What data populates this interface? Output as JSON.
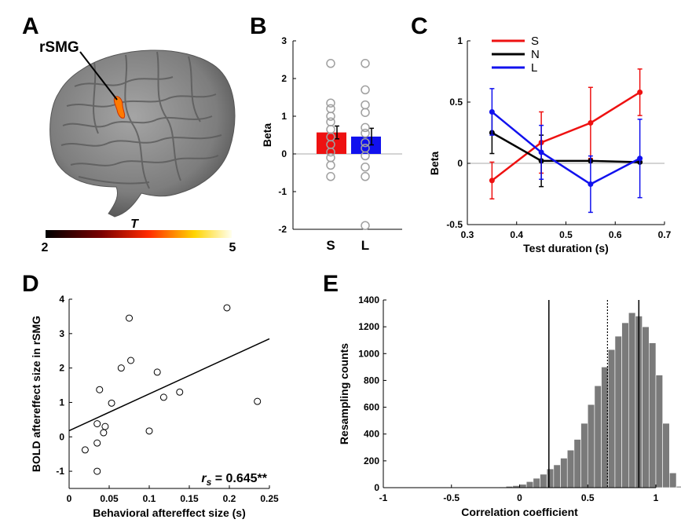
{
  "panels": {
    "a": "A",
    "b": "B",
    "c": "C",
    "d": "D",
    "e": "E"
  },
  "brain": {
    "region_label": "rSMG",
    "colorbar_label": "T",
    "colorbar_min": "2",
    "colorbar_max": "5"
  },
  "colors": {
    "red": "#ee1111",
    "blue": "#1111ee",
    "black": "#000000",
    "hist_bar": "#7a7a7a",
    "circle": "#a0a0a0",
    "cortex": "#8c8c8c"
  },
  "chart_data": [
    {
      "panel": "B",
      "type": "bar",
      "categories": [
        "S",
        "L"
      ],
      "values": [
        0.57,
        0.46
      ],
      "errors": [
        0.17,
        0.22
      ],
      "individual_points": {
        "S": [
          2.4,
          1.35,
          1.2,
          1.0,
          0.85,
          0.65,
          0.45,
          0.25,
          0.05,
          -0.1,
          -0.3,
          -0.6
        ],
        "L": [
          2.4,
          1.7,
          1.3,
          1.1,
          0.7,
          0.55,
          0.3,
          0.15,
          -0.05,
          -0.35,
          -0.6,
          -1.9
        ]
      },
      "ylabel": "Beta",
      "ylim": [
        -2,
        3
      ],
      "yticks": [
        "-2",
        "-1",
        "0",
        "1",
        "2",
        "3"
      ],
      "bar_colors": [
        "#ee1111",
        "#1111ee"
      ]
    },
    {
      "panel": "C",
      "type": "line",
      "x": [
        0.35,
        0.45,
        0.55,
        0.65
      ],
      "series": [
        {
          "name": "S",
          "color": "#ee1111",
          "values": [
            -0.14,
            0.17,
            0.33,
            0.58
          ],
          "errors": [
            0.15,
            0.25,
            0.29,
            0.19
          ]
        },
        {
          "name": "N",
          "color": "#000000",
          "values": [
            0.25,
            0.02,
            0.02,
            0.01
          ],
          "errors": [
            0.17,
            0.21,
            0.0,
            0.0
          ]
        },
        {
          "name": "L",
          "color": "#1111ee",
          "values": [
            0.42,
            0.09,
            -0.17,
            0.04
          ],
          "errors": [
            0.19,
            0.22,
            0.23,
            0.32
          ]
        }
      ],
      "xlabel": "Test duration (s)",
      "ylabel": "Beta",
      "xlim": [
        0.3,
        0.7
      ],
      "ylim": [
        -0.5,
        1
      ],
      "xticks": [
        "0.3",
        "0.4",
        "0.5",
        "0.6",
        "0.7"
      ],
      "yticks": [
        "-0.5",
        "0",
        "0.5",
        "1"
      ],
      "legend": "top-left"
    },
    {
      "panel": "D",
      "type": "scatter",
      "points": [
        [
          0.02,
          -0.38
        ],
        [
          0.035,
          -0.18
        ],
        [
          0.035,
          0.38
        ],
        [
          0.035,
          -1.0
        ],
        [
          0.038,
          1.37
        ],
        [
          0.043,
          0.12
        ],
        [
          0.045,
          0.3
        ],
        [
          0.053,
          0.98
        ],
        [
          0.065,
          2.0
        ],
        [
          0.075,
          3.45
        ],
        [
          0.077,
          2.22
        ],
        [
          0.1,
          0.17
        ],
        [
          0.11,
          1.88
        ],
        [
          0.118,
          1.15
        ],
        [
          0.138,
          1.3
        ],
        [
          0.197,
          3.75
        ],
        [
          0.235,
          1.03
        ]
      ],
      "fit_line": [
        [
          0.0,
          0.18
        ],
        [
          0.25,
          2.85
        ]
      ],
      "xlabel": "Behavioral aftereffect size (s)",
      "ylabel": "BOLD aftereffect size in rSMG",
      "xlim": [
        0,
        0.25
      ],
      "ylim": [
        -1.5,
        4
      ],
      "xticks": [
        "0",
        "0.05",
        "0.1",
        "0.15",
        "0.2",
        "0.25"
      ],
      "yticks": [
        "-1",
        "0",
        "1",
        "2",
        "3",
        "4"
      ],
      "annotation_symbol": "r",
      "annotation_subscript": "s",
      "annotation_value": " = 0.645**"
    },
    {
      "panel": "E",
      "type": "bar",
      "bin_start": -0.2,
      "bin_width": 0.05,
      "values": [
        2,
        5,
        10,
        15,
        25,
        45,
        70,
        100,
        140,
        170,
        220,
        280,
        360,
        480,
        620,
        760,
        900,
        1030,
        1130,
        1230,
        1305,
        1280,
        1200,
        1080,
        840,
        480,
        110,
        10
      ],
      "vlines_solid": [
        0.215,
        0.875
      ],
      "vline_dotted": 0.645,
      "xlabel": "Correlation coefficient",
      "ylabel": "Resampling counts",
      "xlim": [
        -1,
        1
      ],
      "ylim": [
        0,
        1400
      ],
      "xticks": [
        "-1",
        "-0.5",
        "0",
        "0.5",
        "1"
      ],
      "yticks": [
        "0",
        "200",
        "400",
        "600",
        "800",
        "1000",
        "1200",
        "1400"
      ]
    }
  ]
}
